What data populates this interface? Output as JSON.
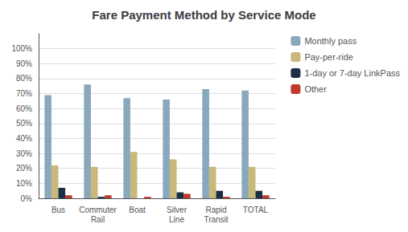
{
  "chart_data": {
    "type": "bar",
    "title": "Fare Payment Method by Service Mode",
    "categories": [
      "Bus",
      "Commuter\nRail",
      "Boat",
      "Silver\nLine",
      "Rapid\nTransit",
      "TOTAL"
    ],
    "series": [
      {
        "name": "Monthly pass",
        "color": "#8aa8bc",
        "values": [
          69,
          76,
          67,
          66,
          73,
          72
        ]
      },
      {
        "name": "Pay-per-ride",
        "color": "#c8b87a",
        "values": [
          22,
          21,
          31,
          26,
          21,
          21
        ]
      },
      {
        "name": "1-day or 7-day LinkPass",
        "color": "#1a2e44",
        "values": [
          7,
          1,
          0,
          4,
          5,
          5
        ]
      },
      {
        "name": "Other",
        "color": "#c0392b",
        "values": [
          2,
          2,
          1,
          3,
          1,
          2
        ]
      }
    ],
    "ylim": [
      0,
      110
    ],
    "yticks": [
      {
        "value": 0,
        "label": "0%"
      },
      {
        "value": 10,
        "label": "10%"
      },
      {
        "value": 20,
        "label": "20%"
      },
      {
        "value": 30,
        "label": "30%"
      },
      {
        "value": 40,
        "label": "40%"
      },
      {
        "value": 50,
        "label": "50%"
      },
      {
        "value": 60,
        "label": "60%"
      },
      {
        "value": 70,
        "label": "70%"
      },
      {
        "value": 80,
        "label": "80%"
      },
      {
        "value": 90,
        "label": "90%"
      },
      {
        "value": 100,
        "label": "100%"
      }
    ],
    "grid": true,
    "legend": "right"
  }
}
